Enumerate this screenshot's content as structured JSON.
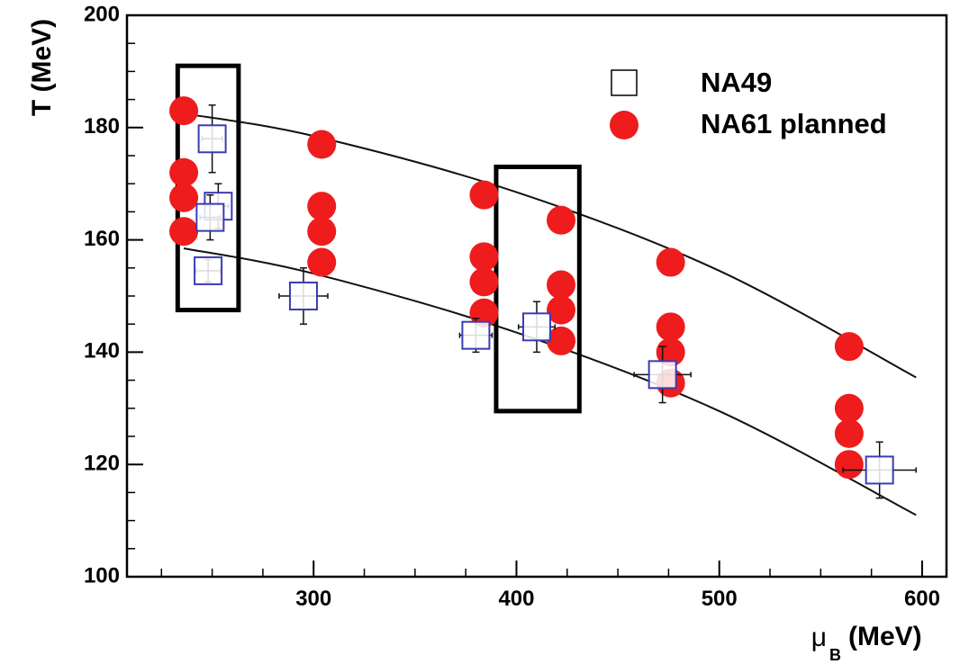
{
  "chart_data": {
    "type": "scatter",
    "title": "",
    "xlabel_symbol": "μ",
    "xlabel_subscript": "B",
    "xlabel_unit": "(MeV)",
    "ylabel": "T (MeV)",
    "xlim": [
      208,
      612
    ],
    "ylim": [
      100,
      200
    ],
    "x_ticks": [
      300,
      400,
      500,
      600
    ],
    "y_ticks": [
      100,
      120,
      140,
      160,
      180,
      200
    ],
    "legend_position": "top-right",
    "series": [
      {
        "name": "NA49",
        "marker": "open-square",
        "color": "#3b3bb5",
        "points": [
          {
            "x": 250,
            "y": 178,
            "xerr": 5,
            "yerr": 6
          },
          {
            "x": 253,
            "y": 166,
            "xerr": 5,
            "yerr": 4
          },
          {
            "x": 249,
            "y": 164,
            "xerr": 5,
            "yerr": 4
          },
          {
            "x": 248,
            "y": 154.5,
            "xerr": 6,
            "yerr": 2
          },
          {
            "x": 295,
            "y": 150,
            "xerr": 12,
            "yerr": 5
          },
          {
            "x": 380,
            "y": 143,
            "xerr": 8,
            "yerr": 3
          },
          {
            "x": 410,
            "y": 144.5,
            "xerr": 9,
            "yerr": 4.5
          },
          {
            "x": 472,
            "y": 136,
            "xerr": 14,
            "yerr": 5
          },
          {
            "x": 579,
            "y": 119,
            "xerr": 18,
            "yerr": 5
          }
        ]
      },
      {
        "name": "NA61 planned",
        "marker": "filled-circle",
        "color": "#ee1c1c",
        "points": [
          {
            "x": 236,
            "y": 183
          },
          {
            "x": 236,
            "y": 172
          },
          {
            "x": 236,
            "y": 167.5
          },
          {
            "x": 236,
            "y": 161.5
          },
          {
            "x": 304,
            "y": 177
          },
          {
            "x": 304,
            "y": 166
          },
          {
            "x": 304,
            "y": 161.5
          },
          {
            "x": 304,
            "y": 156
          },
          {
            "x": 384,
            "y": 168
          },
          {
            "x": 384,
            "y": 157
          },
          {
            "x": 384,
            "y": 152.5
          },
          {
            "x": 384,
            "y": 147
          },
          {
            "x": 422,
            "y": 163.5
          },
          {
            "x": 422,
            "y": 152
          },
          {
            "x": 422,
            "y": 147.5
          },
          {
            "x": 422,
            "y": 142
          },
          {
            "x": 476,
            "y": 156
          },
          {
            "x": 476,
            "y": 144.5
          },
          {
            "x": 476,
            "y": 140
          },
          {
            "x": 476,
            "y": 134.5
          },
          {
            "x": 564,
            "y": 141
          },
          {
            "x": 564,
            "y": 130
          },
          {
            "x": 564,
            "y": 125.5
          },
          {
            "x": 564,
            "y": 120
          }
        ]
      }
    ],
    "curves": [
      {
        "x": [
          236,
          300,
          400,
          500,
          597
        ],
        "y": [
          182.5,
          178.5,
          168.5,
          154.5,
          135.5
        ]
      },
      {
        "x": [
          236,
          300,
          400,
          500,
          597
        ],
        "y": [
          158.5,
          154,
          143.5,
          129.5,
          111
        ]
      }
    ],
    "highlight_boxes": [
      {
        "x": [
          233,
          263
        ],
        "y": [
          147.5,
          191
        ]
      },
      {
        "x": [
          390,
          431
        ],
        "y": [
          129.5,
          173
        ]
      }
    ]
  }
}
